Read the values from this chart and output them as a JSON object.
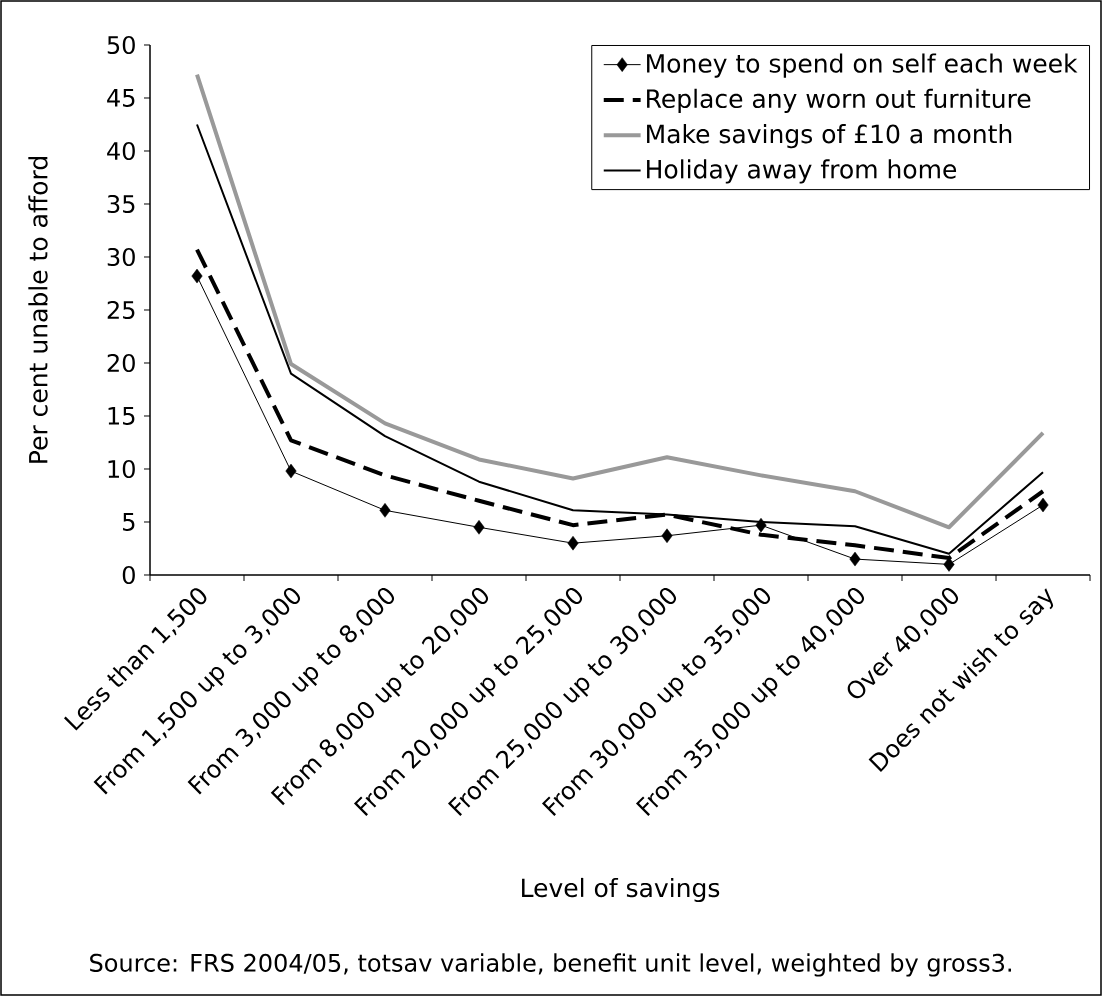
{
  "chart_data": {
    "type": "line",
    "xlabel": "Level of savings",
    "ylabel": "Per cent unable to afford",
    "categories": [
      "Less than 1,500",
      "From 1,500 up to 3,000",
      "From 3,000 up to 8,000",
      "From 8,000 up to 20,000",
      "From 20,000 up to 25,000",
      "From 25,000 up to 30,000",
      "From 30,000 up to 35,000",
      "From 35,000 up to 40,000",
      "Over 40,000",
      "Does not wish to say"
    ],
    "series": [
      {
        "name": "Money to spend on self each week",
        "color": "#000000",
        "marker": "diamond",
        "line_style": "solid",
        "values": [
          28.2,
          9.8,
          6.1,
          4.5,
          3.0,
          3.7,
          4.7,
          1.5,
          1.0,
          6.6
        ]
      },
      {
        "name": "Replace any worn out furniture",
        "color": "#000000",
        "line_style": "dashed",
        "values": [
          30.7,
          12.7,
          9.4,
          7.0,
          4.7,
          5.7,
          3.8,
          2.8,
          1.6,
          7.9
        ]
      },
      {
        "name": "Make savings of £10 a month",
        "color": "#999999",
        "line_style": "solid",
        "values": [
          47.2,
          19.9,
          14.3,
          10.9,
          9.1,
          11.1,
          9.4,
          7.9,
          4.5,
          13.4
        ]
      },
      {
        "name": "Holiday away from home",
        "color": "#000000",
        "line_style": "solid",
        "values": [
          42.5,
          19.0,
          13.1,
          8.8,
          6.1,
          5.7,
          5.0,
          4.6,
          2.0,
          9.7
        ]
      }
    ],
    "ylim": [
      0,
      50
    ],
    "yticks": [
      0,
      5,
      10,
      15,
      20,
      25,
      30,
      35,
      40,
      45,
      50
    ],
    "legend": "top right",
    "grid": false,
    "annotations": [
      "Source: FRS 2004/05, totsav variable, benefit unit level, weighted by gross3."
    ]
  }
}
